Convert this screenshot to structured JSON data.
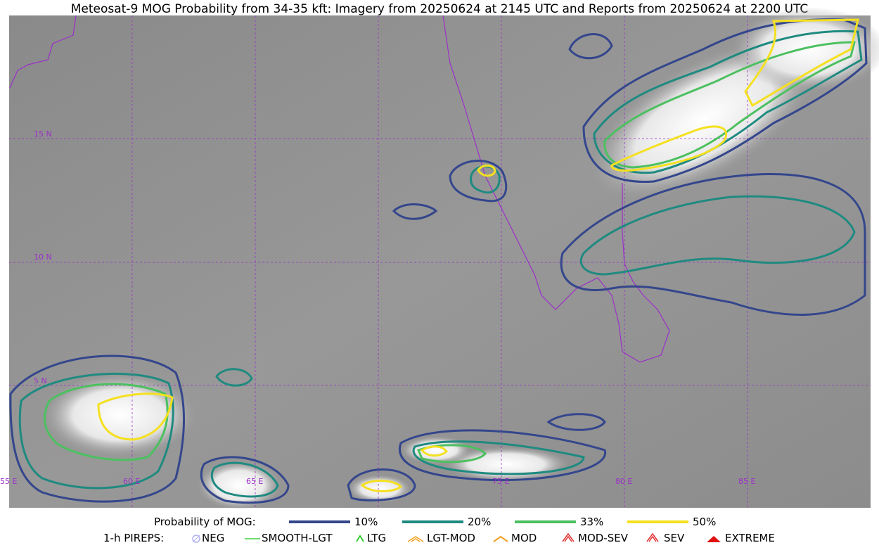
{
  "title": "Meteosat-9 MOG Probability from 34-35 kft: Imagery from 20250624 at 2145 UTC and Reports from 20250624 at 2200 UTC",
  "map": {
    "lat_labels": [
      "15 N",
      "10 N",
      "5 N"
    ],
    "lon_labels": [
      "55 E",
      "60 E",
      "65 E",
      "75 E",
      "80 E",
      "85 E"
    ]
  },
  "legend": {
    "probability_title": "Probability of MOG:",
    "probability_levels": [
      "10%",
      "20%",
      "33%",
      "50%"
    ],
    "pireps_title": "1-h PIREPS:",
    "pireps": [
      "NEG",
      "SMOOTH-LGT",
      "LTG",
      "LGT-MOD",
      "MOD",
      "MOD-SEV",
      "SEV",
      "EXTREME"
    ]
  }
}
